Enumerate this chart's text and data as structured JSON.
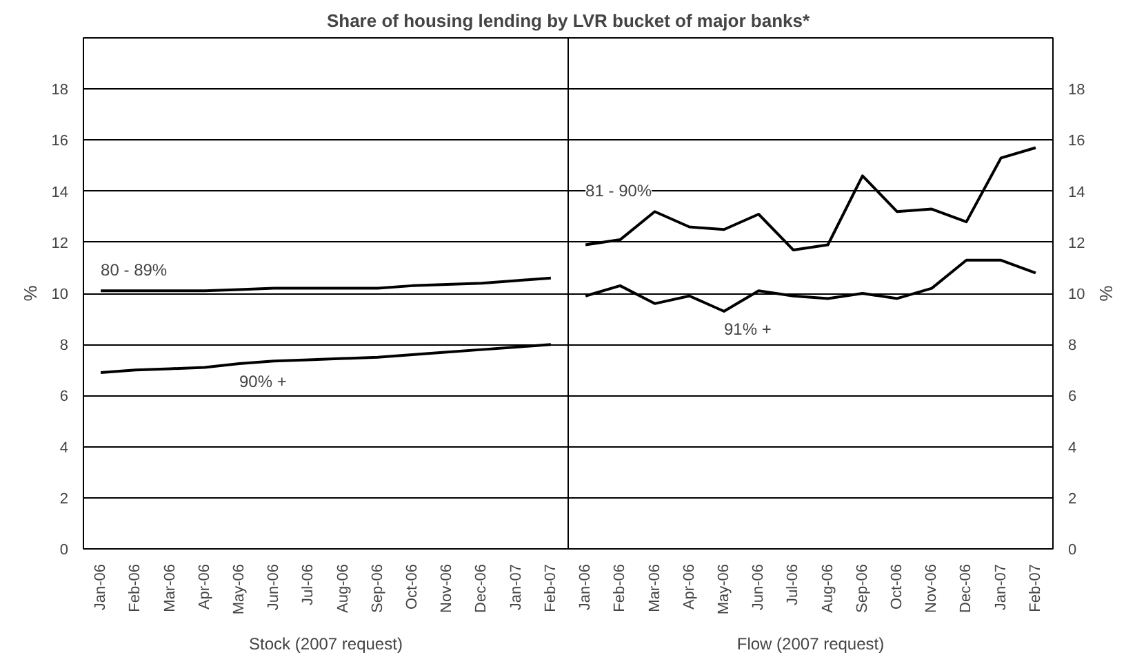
{
  "chart_data": {
    "type": "line",
    "title": "Share of housing lending by LVR bucket of major banks*",
    "categories": [
      "Jan-06",
      "Feb-06",
      "Mar-06",
      "Apr-06",
      "May-06",
      "Jun-06",
      "Jul-06",
      "Aug-06",
      "Sep-06",
      "Oct-06",
      "Nov-06",
      "Dec-06",
      "Jan-07",
      "Feb-07",
      "Jan-06",
      "Feb-06",
      "Mar-06",
      "Apr-06",
      "May-06",
      "Jun-06",
      "Jul-06",
      "Aug-06",
      "Sep-06",
      "Oct-06",
      "Nov-06",
      "Dec-06",
      "Jan-07",
      "Feb-07"
    ],
    "series": [
      {
        "name": "80 - 89%",
        "color": "#000000",
        "values": [
          10.1,
          10.1,
          10.1,
          10.1,
          10.15,
          10.2,
          10.2,
          10.2,
          10.2,
          10.3,
          10.35,
          10.4,
          10.5,
          10.6,
          null,
          null,
          null,
          null,
          null,
          null,
          null,
          null,
          null,
          null,
          null,
          null,
          null,
          null
        ]
      },
      {
        "name": "90% +",
        "color": "#000000",
        "values": [
          6.9,
          7.0,
          7.05,
          7.1,
          7.25,
          7.35,
          7.4,
          7.45,
          7.5,
          7.6,
          7.7,
          7.8,
          7.9,
          8.0,
          null,
          null,
          null,
          null,
          null,
          null,
          null,
          null,
          null,
          null,
          null,
          null,
          null,
          null
        ]
      },
      {
        "name": "81 - 90%",
        "color": "#000000",
        "values": [
          null,
          null,
          null,
          null,
          null,
          null,
          null,
          null,
          null,
          null,
          null,
          null,
          null,
          null,
          11.9,
          12.1,
          13.2,
          12.6,
          12.5,
          13.1,
          11.7,
          11.9,
          14.6,
          13.2,
          13.3,
          12.8,
          15.3,
          15.7
        ]
      },
      {
        "name": "91% +",
        "color": "#000000",
        "values": [
          null,
          null,
          null,
          null,
          null,
          null,
          null,
          null,
          null,
          null,
          null,
          null,
          null,
          null,
          9.9,
          10.3,
          9.6,
          9.9,
          9.3,
          10.1,
          9.9,
          9.8,
          10.0,
          9.8,
          10.2,
          11.3,
          11.3,
          10.8
        ]
      }
    ],
    "ylabel": "%",
    "y2label": "%",
    "ylim": [
      0,
      20
    ],
    "yticks": [
      0,
      2,
      4,
      6,
      8,
      10,
      12,
      14,
      16,
      18
    ],
    "y2lim": [
      0,
      20
    ],
    "y2ticks": [
      0,
      2,
      4,
      6,
      8,
      10,
      12,
      14,
      16,
      18
    ],
    "grid": "y",
    "line_style": "solid",
    "marker": "none",
    "annotations": [
      "Stock (2007 request)",
      "Flow (2007 request)"
    ]
  }
}
